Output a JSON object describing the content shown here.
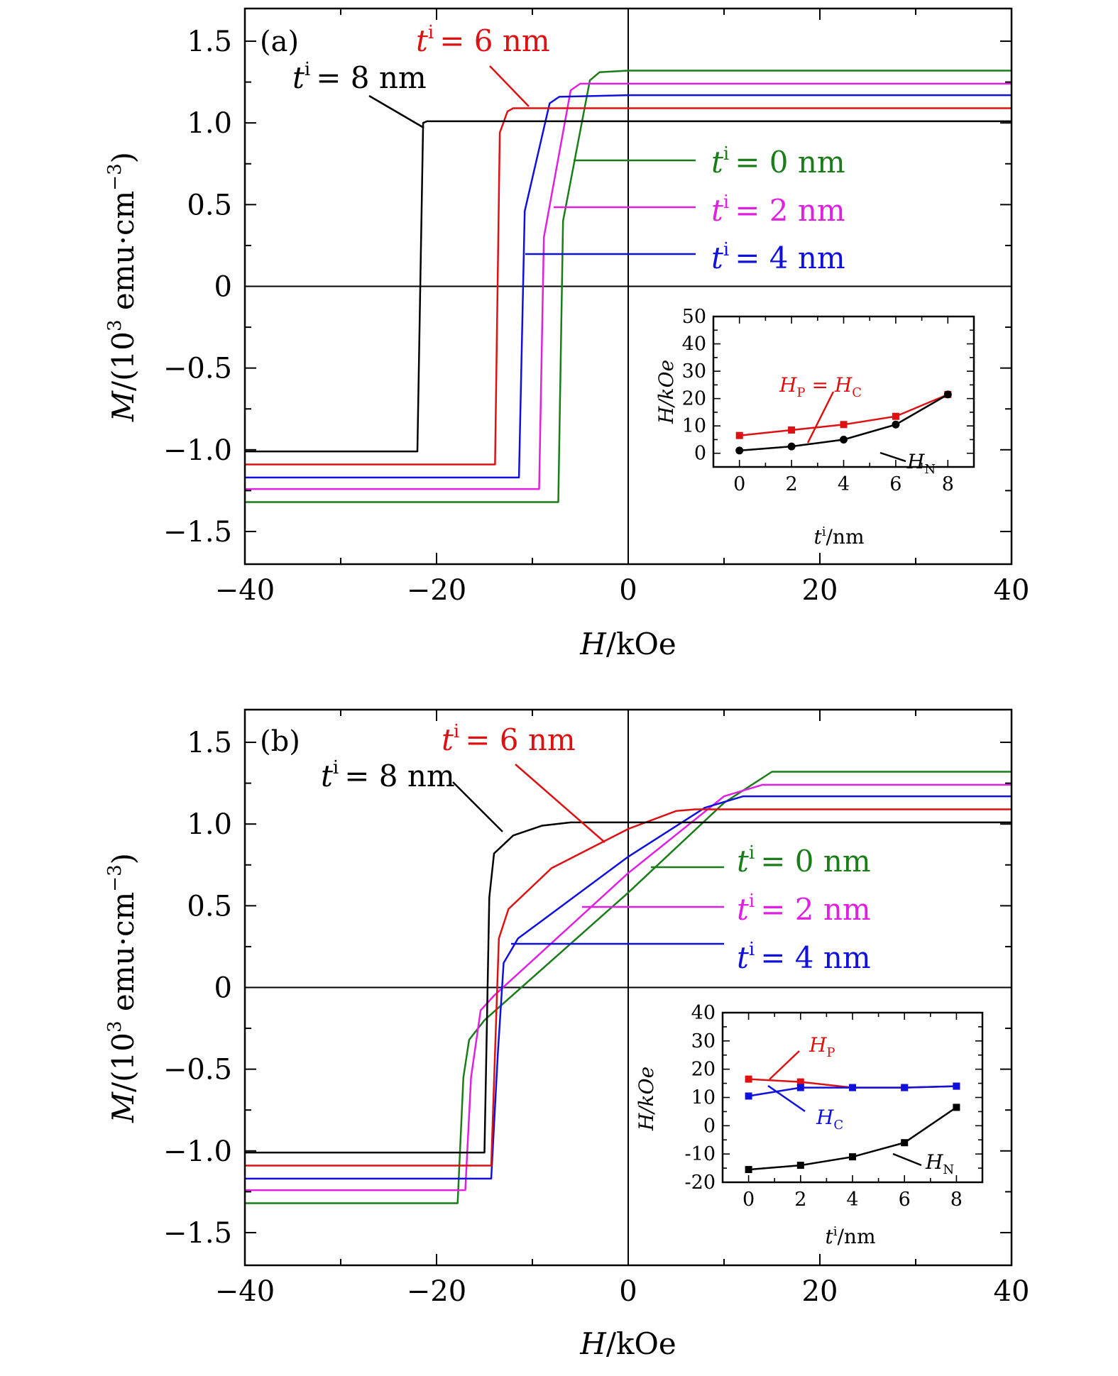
{
  "figure": {
    "panel_labels": [
      "(a)",
      "(b)"
    ],
    "xlabel_var": "H",
    "xlabel_unit": "/kOe",
    "ylabel_var": "M",
    "ylabel_unit": "/(10",
    "ylabel_exp": "3",
    "ylabel_tail": " emu·cm",
    "ylabel_exp2": "−3",
    "ylabel_close": ")",
    "inset_ylabel": "H/kOe",
    "inset_xlabel_var": "t",
    "inset_xlabel_sup": "i",
    "inset_xlabel_unit": "/nm"
  },
  "chart_data": [
    {
      "type": "line",
      "panel": "(a)",
      "xlabel": "H/kOe",
      "ylabel": "M/(10^3 emu·cm^-3)",
      "xlim": [
        -40,
        40
      ],
      "ylim": [
        -1.7,
        1.7
      ],
      "xticks": [
        -40,
        -20,
        0,
        20,
        40
      ],
      "xtick_labels": [
        "−40",
        "−20",
        "0",
        "20",
        "40"
      ],
      "yticks": [
        -1.5,
        -1.0,
        -0.5,
        0,
        0.5,
        1.0,
        1.5
      ],
      "ytick_labels": [
        "−1.5",
        "−1.0",
        "−0.5",
        "0",
        "0.5",
        "1.0",
        "1.5"
      ],
      "series": [
        {
          "name": "t^i = 0 nm",
          "label_sup": "i",
          "label_text": "= 0 nm",
          "color": "#1a7d1a",
          "points": [
            [
              -40,
              -1.32
            ],
            [
              -7.3,
              -1.32
            ],
            [
              -6.8,
              0.4
            ],
            [
              -4.0,
              1.26
            ],
            [
              -3.0,
              1.31
            ],
            [
              0,
              1.32
            ],
            [
              40,
              1.32
            ]
          ]
        },
        {
          "name": "t^i = 2 nm",
          "label_sup": "i",
          "label_text": "= 2 nm",
          "color": "#e020e0",
          "points": [
            [
              -40,
              -1.24
            ],
            [
              -9.3,
              -1.24
            ],
            [
              -8.8,
              0.3
            ],
            [
              -6.0,
              1.2
            ],
            [
              -5.0,
              1.24
            ],
            [
              0,
              1.24
            ],
            [
              40,
              1.24
            ]
          ]
        },
        {
          "name": "t^i = 4 nm",
          "label_sup": "i",
          "label_text": "= 4 nm",
          "color": "#1010dd",
          "points": [
            [
              -40,
              -1.17
            ],
            [
              -11.4,
              -1.17
            ],
            [
              -10.8,
              0.46
            ],
            [
              -8.2,
              1.12
            ],
            [
              -7.2,
              1.16
            ],
            [
              0,
              1.17
            ],
            [
              40,
              1.17
            ]
          ]
        },
        {
          "name": "t^i = 6 nm",
          "label_sup": "i",
          "label_text": "= 6 nm",
          "color": "#dd1111",
          "points": [
            [
              -40,
              -1.09
            ],
            [
              -13.9,
              -1.09
            ],
            [
              -13.4,
              0.94
            ],
            [
              -12.6,
              1.07
            ],
            [
              -12.0,
              1.09
            ],
            [
              0,
              1.09
            ],
            [
              40,
              1.09
            ]
          ]
        },
        {
          "name": "t^i = 8 nm",
          "label_sup": "i",
          "label_text": "= 8 nm",
          "color": "#000000",
          "points": [
            [
              -40,
              -1.01
            ],
            [
              -22.0,
              -1.01
            ],
            [
              -21.4,
              1.0
            ],
            [
              -21.0,
              1.01
            ],
            [
              0,
              1.01
            ],
            [
              40,
              1.01
            ]
          ]
        }
      ],
      "inset": {
        "xlabel": "t^i/nm",
        "ylabel": "H/kOe",
        "xlim": [
          -1,
          9
        ],
        "ylim": [
          -5,
          50
        ],
        "xticks": [
          0,
          2,
          4,
          6,
          8
        ],
        "yticks": [
          0,
          10,
          20,
          30,
          40,
          50
        ],
        "series": [
          {
            "name": "H_P = H_C",
            "label_var": "H",
            "label_sub": "P",
            "label_mid": " = ",
            "label_var2": "H",
            "label_sub2": "C",
            "color": "#dd1111",
            "marker": "square",
            "x": [
              0,
              2,
              4,
              6,
              8
            ],
            "y": [
              6.5,
              8.5,
              10.5,
              13.5,
              21.5
            ]
          },
          {
            "name": "H_N",
            "label_var": "H",
            "label_sub": "N",
            "color": "#000000",
            "marker": "circle",
            "x": [
              0,
              2,
              4,
              6,
              8
            ],
            "y": [
              1.0,
              2.5,
              5.0,
              10.5,
              21.5
            ]
          }
        ]
      }
    },
    {
      "type": "line",
      "panel": "(b)",
      "xlabel": "H/kOe",
      "ylabel": "M/(10^3 emu·cm^-3)",
      "xlim": [
        -40,
        40
      ],
      "ylim": [
        -1.7,
        1.7
      ],
      "xticks": [
        -40,
        -20,
        0,
        20,
        40
      ],
      "xtick_labels": [
        "−40",
        "−20",
        "0",
        "20",
        "40"
      ],
      "yticks": [
        -1.5,
        -1.0,
        -0.5,
        0,
        0.5,
        1.0,
        1.5
      ],
      "ytick_labels": [
        "−1.5",
        "−1.0",
        "−0.5",
        "0",
        "0.5",
        "1.0",
        "1.5"
      ],
      "series": [
        {
          "name": "t^i = 0 nm",
          "label_sup": "i",
          "label_text": "= 0 nm",
          "color": "#1a7d1a",
          "points": [
            [
              -40,
              -1.32
            ],
            [
              -17.8,
              -1.32
            ],
            [
              -17.2,
              -0.55
            ],
            [
              -16.6,
              -0.32
            ],
            [
              -15.0,
              -0.2
            ],
            [
              0,
              0.58
            ],
            [
              10,
              1.13
            ],
            [
              15.0,
              1.32
            ],
            [
              40,
              1.32
            ]
          ]
        },
        {
          "name": "t^i = 2 nm",
          "label_sup": "i",
          "label_text": "= 2 nm",
          "color": "#e020e0",
          "points": [
            [
              -40,
              -1.24
            ],
            [
              -17.0,
              -1.24
            ],
            [
              -16.4,
              -0.55
            ],
            [
              -15.4,
              -0.14
            ],
            [
              -14.0,
              -0.05
            ],
            [
              0,
              0.7
            ],
            [
              10,
              1.17
            ],
            [
              14.0,
              1.24
            ],
            [
              40,
              1.24
            ]
          ]
        },
        {
          "name": "t^i = 4 nm",
          "label_sup": "i",
          "label_text": "= 4 nm",
          "color": "#1010dd",
          "points": [
            [
              -40,
              -1.17
            ],
            [
              -14.3,
              -1.17
            ],
            [
              -13.6,
              -0.4
            ],
            [
              -13.0,
              0.15
            ],
            [
              -11.5,
              0.3
            ],
            [
              0,
              0.8
            ],
            [
              8,
              1.1
            ],
            [
              12.0,
              1.17
            ],
            [
              40,
              1.17
            ]
          ]
        },
        {
          "name": "t^i = 6 nm",
          "label_sup": "i",
          "label_text": "= 6 nm",
          "color": "#dd1111",
          "points": [
            [
              -40,
              -1.09
            ],
            [
              -14.3,
              -1.09
            ],
            [
              -13.5,
              0.3
            ],
            [
              -12.5,
              0.48
            ],
            [
              -8.0,
              0.73
            ],
            [
              0,
              0.97
            ],
            [
              5.0,
              1.08
            ],
            [
              7.0,
              1.09
            ],
            [
              40,
              1.09
            ]
          ]
        },
        {
          "name": "t^i = 8 nm",
          "label_sup": "i",
          "label_text": "= 8 nm",
          "color": "#000000",
          "points": [
            [
              -40,
              -1.01
            ],
            [
              -15.0,
              -1.01
            ],
            [
              -14.5,
              0.55
            ],
            [
              -14.0,
              0.82
            ],
            [
              -12.0,
              0.93
            ],
            [
              -9.0,
              0.99
            ],
            [
              -6.0,
              1.01
            ],
            [
              40,
              1.01
            ]
          ]
        }
      ],
      "inset": {
        "xlabel": "t^i/nm",
        "ylabel": "H/kOe",
        "xlim": [
          -1,
          9
        ],
        "ylim": [
          -20,
          40
        ],
        "xticks": [
          0,
          2,
          4,
          6,
          8
        ],
        "yticks": [
          -20,
          -10,
          0,
          10,
          20,
          30,
          40
        ],
        "series": [
          {
            "name": "H_P",
            "label_var": "H",
            "label_sub": "P",
            "color": "#dd1111",
            "marker": "square",
            "x": [
              0,
              2,
              4,
              6,
              8
            ],
            "y": [
              16.5,
              15.5,
              13.5,
              13.5,
              14.0
            ]
          },
          {
            "name": "H_C",
            "label_var": "H",
            "label_sub": "C",
            "color": "#1010dd",
            "marker": "square",
            "x": [
              0,
              2,
              4,
              6,
              8
            ],
            "y": [
              10.5,
              13.5,
              13.5,
              13.5,
              14.0
            ]
          },
          {
            "name": "H_N",
            "label_var": "H",
            "label_sub": "N",
            "color": "#000000",
            "marker": "square",
            "x": [
              0,
              2,
              4,
              6,
              8
            ],
            "y": [
              -15.5,
              -14.0,
              -11.0,
              -6.0,
              6.5
            ]
          }
        ]
      }
    }
  ]
}
